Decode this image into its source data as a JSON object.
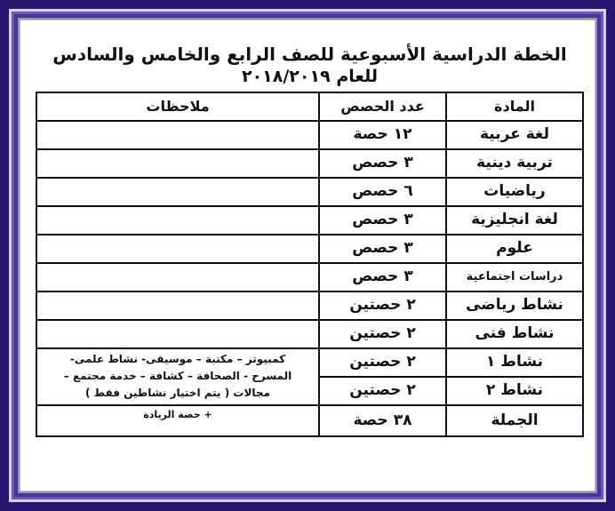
{
  "title_line1": "الخطة الدراسية الأسبوعية للصف الرابع والخامس والسادس",
  "title_line2": "للعام ٢٠١٨/٢٠١٩",
  "table": {
    "headers": {
      "subject": "المادة",
      "count": "عدد الحصص",
      "notes": "ملاحظات"
    },
    "rows": [
      {
        "subject": "لغة عربية",
        "count": "١٢ حصة"
      },
      {
        "subject": "تربية دينية",
        "count": "٣ حصص"
      },
      {
        "subject": "رياضيات",
        "count": "٦ حصص"
      },
      {
        "subject": "لغة انجليزية",
        "count": "٣ حصص"
      },
      {
        "subject": "علوم",
        "count": "٣ حصص"
      },
      {
        "subject": "دراسات اجتماعية",
        "count": "٣ حصص"
      },
      {
        "subject": "نشاط رياضى",
        "count": "٢ حصتين"
      },
      {
        "subject": "نشاط فنى",
        "count": "٢ حصتين"
      },
      {
        "subject": "نشاط ١",
        "count": "٢ حصتين"
      },
      {
        "subject": "نشاط ٢",
        "count": "٢ حصتين"
      }
    ],
    "activities_note": [
      "كمبيوتر – مكتبة – موسيقى- نشاط علمى-",
      "المسرح - الصحافة – كشافة – خدمة مجتمع –",
      "مجالات ( يتم اختيار نشاطين فقط )"
    ],
    "total": {
      "subject": "الجملة",
      "count": "٣٨ حصة",
      "note": "+ حصة الريادة"
    }
  }
}
